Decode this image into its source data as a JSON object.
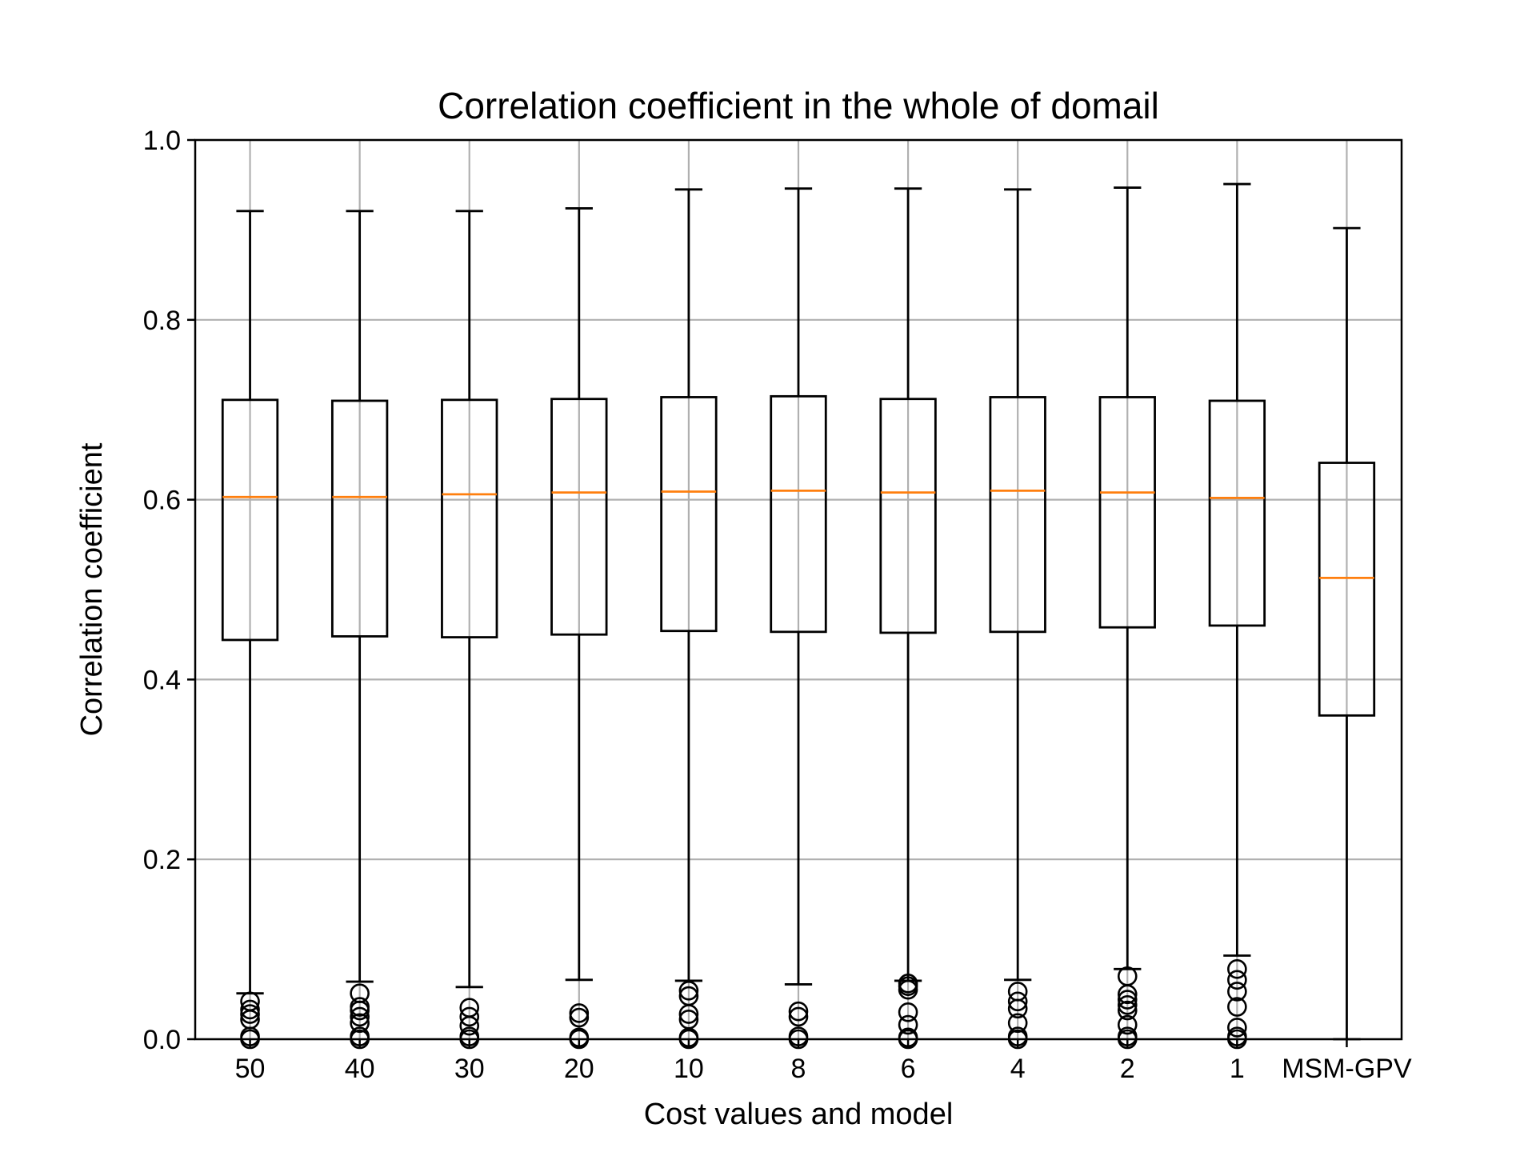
{
  "chart_data": {
    "type": "box",
    "title": "Correlation coefficient in the whole of domail",
    "xlabel": "Cost values and model",
    "ylabel": "Correlation coefficient",
    "ylim": [
      0.0,
      1.0
    ],
    "yticks": [
      "0.0",
      "0.2",
      "0.4",
      "0.6",
      "0.8",
      "1.0"
    ],
    "grid": true,
    "colors": {
      "median": "#ff7f0e",
      "box": "#000000",
      "grid": "#b0b0b0"
    },
    "categories": [
      "50",
      "40",
      "30",
      "20",
      "10",
      "8",
      "6",
      "4",
      "2",
      "1",
      "MSM-GPV"
    ],
    "boxes": [
      {
        "label": "50",
        "whislo": 0.051,
        "q1": 0.444,
        "med": 0.603,
        "q3": 0.711,
        "whishi": 0.921,
        "fliers": [
          0.0,
          0.003,
          0.022,
          0.028,
          0.033,
          0.042
        ]
      },
      {
        "label": "40",
        "whislo": 0.064,
        "q1": 0.448,
        "med": 0.603,
        "q3": 0.71,
        "whishi": 0.921,
        "fliers": [
          0.0,
          0.003,
          0.018,
          0.025,
          0.032,
          0.036,
          0.051
        ]
      },
      {
        "label": "30",
        "whislo": 0.058,
        "q1": 0.447,
        "med": 0.606,
        "q3": 0.711,
        "whishi": 0.921,
        "fliers": [
          0.0,
          0.003,
          0.015,
          0.025,
          0.035
        ]
      },
      {
        "label": "20",
        "whislo": 0.066,
        "q1": 0.45,
        "med": 0.608,
        "q3": 0.712,
        "whishi": 0.924,
        "fliers": [
          0.0,
          0.002,
          0.024,
          0.029
        ]
      },
      {
        "label": "10",
        "whislo": 0.065,
        "q1": 0.454,
        "med": 0.609,
        "q3": 0.714,
        "whishi": 0.945,
        "fliers": [
          0.0,
          0.002,
          0.022,
          0.028,
          0.048,
          0.054
        ]
      },
      {
        "label": "8",
        "whislo": 0.061,
        "q1": 0.453,
        "med": 0.61,
        "q3": 0.715,
        "whishi": 0.946,
        "fliers": [
          0.0,
          0.003,
          0.025,
          0.031
        ]
      },
      {
        "label": "6",
        "whislo": 0.065,
        "q1": 0.452,
        "med": 0.608,
        "q3": 0.712,
        "whishi": 0.946,
        "fliers": [
          0.0,
          0.002,
          0.016,
          0.03,
          0.055,
          0.059,
          0.062
        ]
      },
      {
        "label": "4",
        "whislo": 0.066,
        "q1": 0.453,
        "med": 0.61,
        "q3": 0.714,
        "whishi": 0.945,
        "fliers": [
          0.0,
          0.003,
          0.018,
          0.034,
          0.042,
          0.053
        ]
      },
      {
        "label": "2",
        "whislo": 0.078,
        "q1": 0.458,
        "med": 0.608,
        "q3": 0.714,
        "whishi": 0.947,
        "fliers": [
          0.0,
          0.003,
          0.016,
          0.032,
          0.038,
          0.044,
          0.05,
          0.07
        ]
      },
      {
        "label": "1",
        "whislo": 0.093,
        "q1": 0.46,
        "med": 0.602,
        "q3": 0.71,
        "whishi": 0.951,
        "fliers": [
          0.0,
          0.003,
          0.013,
          0.036,
          0.053,
          0.066,
          0.078
        ]
      },
      {
        "label": "MSM-GPV",
        "whislo": 0.0,
        "q1": 0.36,
        "med": 0.513,
        "q3": 0.641,
        "whishi": 0.902,
        "fliers": []
      }
    ]
  }
}
